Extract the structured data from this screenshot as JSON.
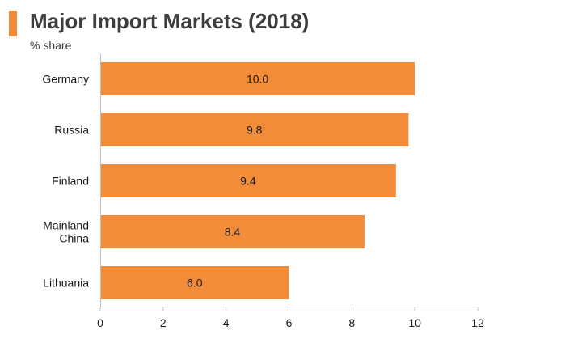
{
  "chart_data": {
    "type": "bar",
    "orientation": "horizontal",
    "title": "Major Import Markets (2018)",
    "subtitle": "% share",
    "categories": [
      "Germany",
      "Russia",
      "Finland",
      "Mainland China",
      "Lithuania"
    ],
    "category_lines": [
      [
        "Germany"
      ],
      [
        "Russia"
      ],
      [
        "Finland"
      ],
      [
        "Mainland",
        "China"
      ],
      [
        "Lithuania"
      ]
    ],
    "values": [
      10.0,
      9.8,
      9.4,
      8.4,
      6.0
    ],
    "data_labels": [
      "10.0",
      "9.8",
      "9.4",
      "8.4",
      "6.0"
    ],
    "xlim": [
      0,
      12
    ],
    "xticks": [
      "0",
      "2",
      "4",
      "6",
      "8",
      "10",
      "12"
    ],
    "grid": false,
    "bar_color": "#f28c38",
    "accent_color": "#f28c38"
  }
}
